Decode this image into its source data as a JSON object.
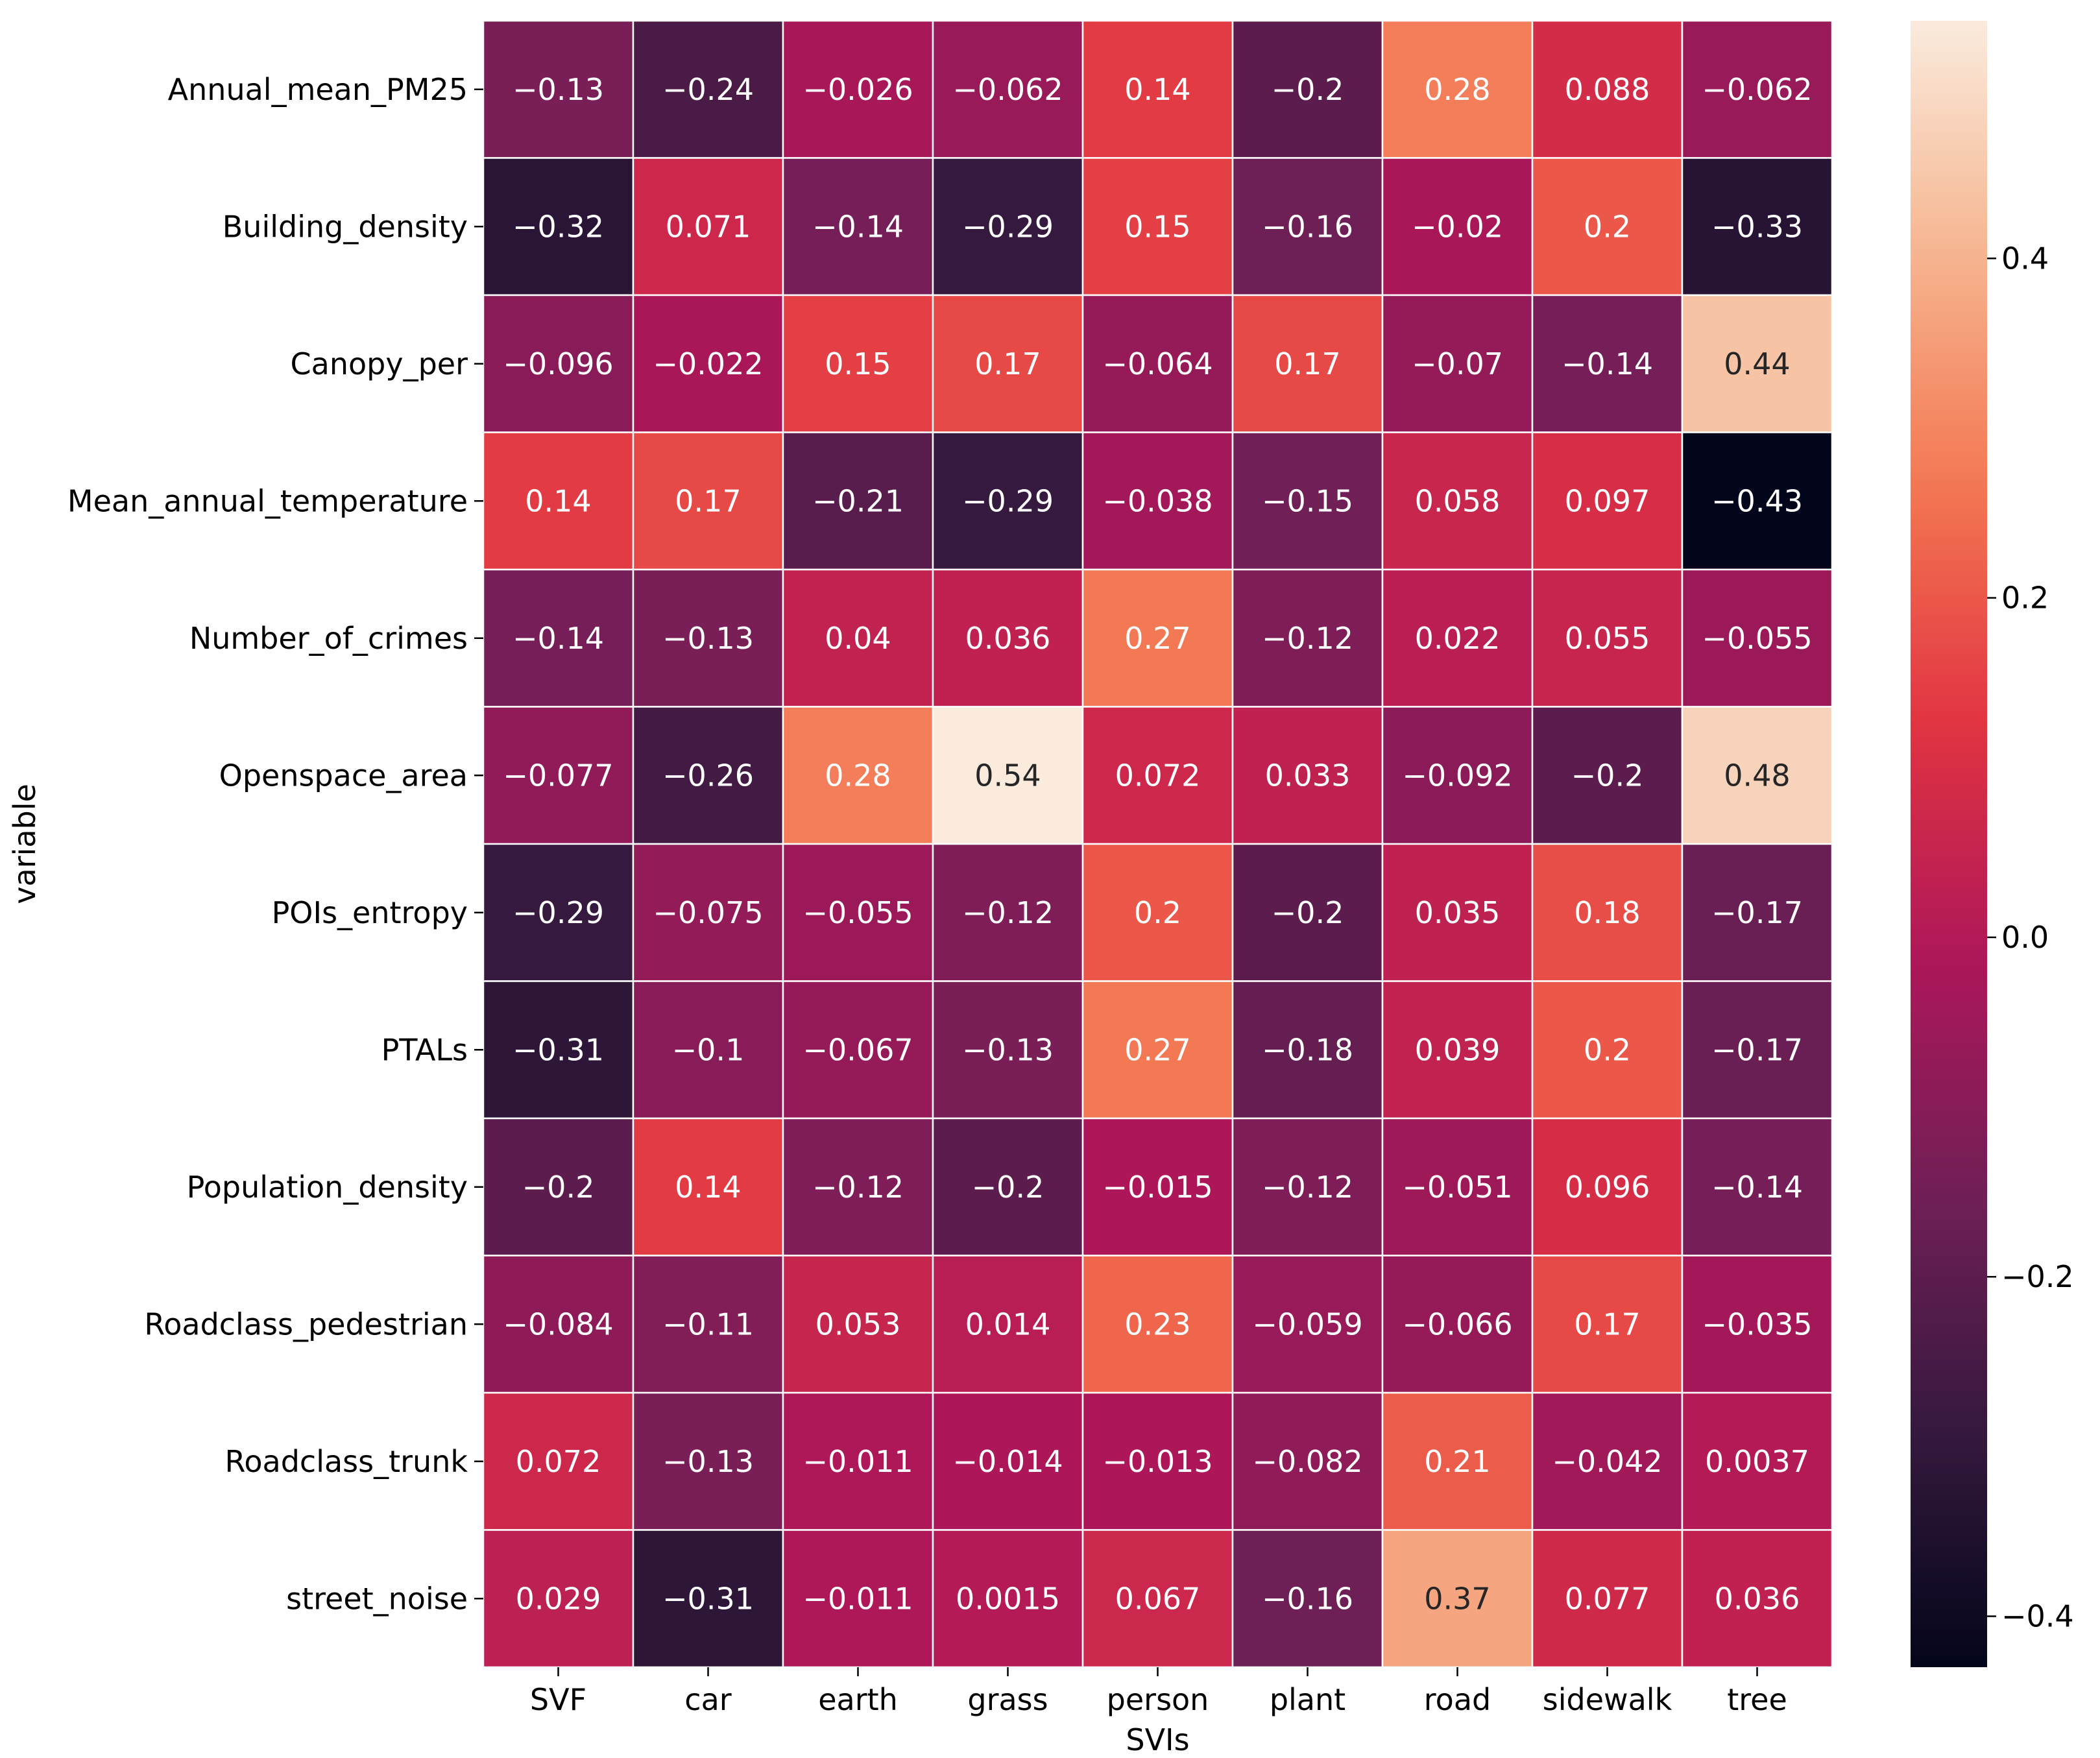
{
  "chart_data": {
    "type": "heatmap",
    "title": "",
    "xlabel": "SVIs",
    "ylabel": "variable",
    "x_categories": [
      "SVF",
      "car",
      "earth",
      "grass",
      "person",
      "plant",
      "road",
      "sidewalk",
      "tree"
    ],
    "y_categories": [
      "Annual_mean_PM25",
      "Building_density",
      "Canopy_per",
      "Mean_annual_temperature",
      "Number_of_crimes",
      "Openspace_area",
      "POIs_entropy",
      "PTALs",
      "Population_density",
      "Roadclass_pedestrian",
      "Roadclass_trunk",
      "street_noise"
    ],
    "values": [
      [
        -0.13,
        -0.24,
        -0.026,
        -0.062,
        0.14,
        -0.2,
        0.28,
        0.088,
        -0.062
      ],
      [
        -0.32,
        0.071,
        -0.14,
        -0.29,
        0.15,
        -0.16,
        -0.02,
        0.2,
        -0.33
      ],
      [
        -0.096,
        -0.022,
        0.15,
        0.17,
        -0.064,
        0.17,
        -0.07,
        -0.14,
        0.44
      ],
      [
        0.14,
        0.17,
        -0.21,
        -0.29,
        -0.038,
        -0.15,
        0.058,
        0.097,
        -0.43
      ],
      [
        -0.14,
        -0.13,
        0.04,
        0.036,
        0.27,
        -0.12,
        0.022,
        0.055,
        -0.055
      ],
      [
        -0.077,
        -0.26,
        0.28,
        0.54,
        0.072,
        0.033,
        -0.092,
        -0.2,
        0.48
      ],
      [
        -0.29,
        -0.075,
        -0.055,
        -0.12,
        0.2,
        -0.2,
        0.035,
        0.18,
        -0.17
      ],
      [
        -0.31,
        -0.1,
        -0.067,
        -0.13,
        0.27,
        -0.18,
        0.039,
        0.2,
        -0.17
      ],
      [
        -0.2,
        0.14,
        -0.12,
        -0.2,
        -0.015,
        -0.12,
        -0.051,
        0.096,
        -0.14
      ],
      [
        -0.084,
        -0.11,
        0.053,
        0.014,
        0.23,
        -0.059,
        -0.066,
        0.17,
        -0.035
      ],
      [
        0.072,
        -0.13,
        -0.011,
        -0.014,
        -0.013,
        -0.082,
        0.21,
        -0.042,
        0.0037
      ],
      [
        0.029,
        -0.31,
        -0.011,
        0.0015,
        0.067,
        -0.16,
        0.37,
        0.077,
        0.036
      ]
    ],
    "annotations": [
      [
        "−0.13",
        "−0.24",
        "−0.026",
        "−0.062",
        "0.14",
        "−0.2",
        "0.28",
        "0.088",
        "−0.062"
      ],
      [
        "−0.32",
        "0.071",
        "−0.14",
        "−0.29",
        "0.15",
        "−0.16",
        "−0.02",
        "0.2",
        "−0.33"
      ],
      [
        "−0.096",
        "−0.022",
        "0.15",
        "0.17",
        "−0.064",
        "0.17",
        "−0.07",
        "−0.14",
        "0.44"
      ],
      [
        "0.14",
        "0.17",
        "−0.21",
        "−0.29",
        "−0.038",
        "−0.15",
        "0.058",
        "0.097",
        "−0.43"
      ],
      [
        "−0.14",
        "−0.13",
        "0.04",
        "0.036",
        "0.27",
        "−0.12",
        "0.022",
        "0.055",
        "−0.055"
      ],
      [
        "−0.077",
        "−0.26",
        "0.28",
        "0.54",
        "0.072",
        "0.033",
        "−0.092",
        "−0.2",
        "0.48"
      ],
      [
        "−0.29",
        "−0.075",
        "−0.055",
        "−0.12",
        "0.2",
        "−0.2",
        "0.035",
        "0.18",
        "−0.17"
      ],
      [
        "−0.31",
        "−0.1",
        "−0.067",
        "−0.13",
        "0.27",
        "−0.18",
        "0.039",
        "0.2",
        "−0.17"
      ],
      [
        "−0.2",
        "0.14",
        "−0.12",
        "−0.2",
        "−0.015",
        "−0.12",
        "−0.051",
        "0.096",
        "−0.14"
      ],
      [
        "−0.084",
        "−0.11",
        "0.053",
        "0.014",
        "0.23",
        "−0.059",
        "−0.066",
        "0.17",
        "−0.035"
      ],
      [
        "0.072",
        "−0.13",
        "−0.011",
        "−0.014",
        "−0.013",
        "−0.082",
        "0.21",
        "−0.042",
        "0.0037"
      ],
      [
        "0.029",
        "−0.31",
        "−0.011",
        "0.0015",
        "0.067",
        "−0.16",
        "0.37",
        "0.077",
        "0.036"
      ]
    ],
    "colorbar": {
      "colormap": "rocket",
      "range": [
        -0.43,
        0.54
      ],
      "ticks": [
        -0.4,
        -0.2,
        0.0,
        0.2,
        0.4
      ],
      "tick_labels": [
        "−0.4",
        "−0.2",
        "0.0",
        "0.2",
        "0.4"
      ]
    },
    "colormap_stops": [
      "#03051a",
      "#35193e",
      "#701f57",
      "#ad1759",
      "#e13342",
      "#f37651",
      "#f6b48f",
      "#faebdd"
    ],
    "cell_border_color": "#ffffff",
    "grid": false
  }
}
